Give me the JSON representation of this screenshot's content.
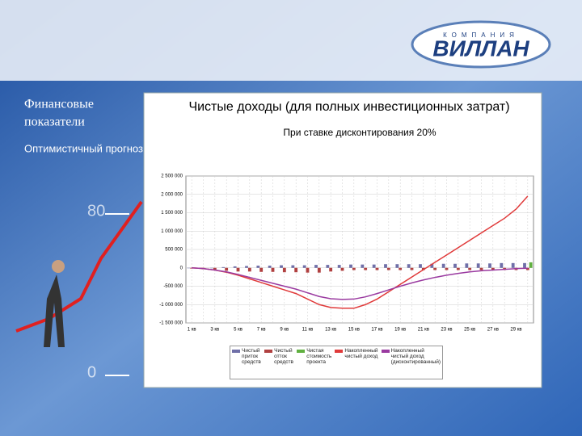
{
  "slide": {
    "heading": "Финансовые показатели",
    "scenario": "Оптимистичный прогноз",
    "logo_small": "КОМПАНИЯ",
    "logo": "ВИЛЛАН",
    "scale_top": "80",
    "scale_bottom": "0"
  },
  "chart_data": {
    "type": "combo",
    "title": "Чистые доходы (для полных инвестиционных затрат)",
    "subtitle": "При ставке дисконтирования 20%",
    "categories": [
      "1 кв",
      null,
      "3 кв",
      null,
      "5 кв",
      null,
      "7 кв",
      null,
      "9 кв",
      null,
      "11 кв",
      null,
      "13 кв",
      null,
      "15 кв",
      null,
      "17 кв",
      null,
      "19 кв",
      null,
      "21 кв",
      null,
      "23 кв",
      null,
      "25 кв",
      null,
      "27 кв",
      null,
      "29 кв",
      null
    ],
    "ylim": [
      -1500000,
      2500000
    ],
    "yticks": [
      {
        "value": -1500000,
        "label": "-1 500 000"
      },
      {
        "value": -1000000,
        "label": "-1 000 000"
      },
      {
        "value": -500000,
        "label": "-500 000"
      },
      0,
      {
        "value": 500000,
        "label": "500 000"
      },
      {
        "value": 1000000,
        "label": "1 000 000"
      },
      {
        "value": 1500000,
        "label": "1 500 000"
      },
      {
        "value": 2000000,
        "label": "2 000 000"
      },
      {
        "value": 2500000,
        "label": "2 500 000"
      }
    ],
    "grid": true,
    "series": [
      {
        "name": "Чистый приток средств",
        "type": "bar",
        "color": "#6f6fa8",
        "values": [
          0,
          0,
          0,
          20000,
          40000,
          50000,
          60000,
          60000,
          70000,
          70000,
          70000,
          80000,
          80000,
          80000,
          90000,
          90000,
          90000,
          100000,
          100000,
          100000,
          100000,
          110000,
          110000,
          110000,
          120000,
          120000,
          120000,
          130000,
          130000,
          130000
        ]
      },
      {
        "name": "Чистый отток средств",
        "type": "bar",
        "color": "#b04040",
        "values": [
          -20000,
          -40000,
          -60000,
          -80000,
          -100000,
          -100000,
          -110000,
          -110000,
          -120000,
          -120000,
          -130000,
          -130000,
          -100000,
          -80000,
          -60000,
          -60000,
          -60000,
          -60000,
          -60000,
          -60000,
          -60000,
          -60000,
          -60000,
          -60000,
          -60000,
          -60000,
          -60000,
          -60000,
          -60000,
          -60000
        ]
      },
      {
        "name": "Чистая стоимость проекта",
        "type": "bar",
        "color": "#60b040",
        "values": [
          null,
          null,
          null,
          null,
          null,
          null,
          null,
          null,
          null,
          null,
          null,
          null,
          null,
          null,
          null,
          null,
          null,
          null,
          null,
          null,
          null,
          null,
          null,
          null,
          null,
          null,
          null,
          null,
          null,
          150000
        ]
      },
      {
        "name": "Накопленный чистый доход",
        "type": "line",
        "color": "#e03a3a",
        "values": [
          0,
          -20000,
          -60000,
          -120000,
          -200000,
          -300000,
          -400000,
          -500000,
          -600000,
          -700000,
          -850000,
          -1000000,
          -1080000,
          -1100000,
          -1100000,
          -1000000,
          -850000,
          -650000,
          -450000,
          -250000,
          -50000,
          150000,
          350000,
          550000,
          750000,
          950000,
          1150000,
          1350000,
          1600000,
          1950000
        ]
      },
      {
        "name": "Накопленный чистый доход (дисконтированный)",
        "type": "line",
        "color": "#9a3aa0",
        "values": [
          0,
          -20000,
          -60000,
          -110000,
          -180000,
          -260000,
          -340000,
          -420000,
          -500000,
          -580000,
          -680000,
          -780000,
          -840000,
          -860000,
          -850000,
          -790000,
          -700000,
          -600000,
          -500000,
          -410000,
          -330000,
          -260000,
          -200000,
          -150000,
          -110000,
          -80000,
          -60000,
          -40000,
          -20000,
          -10000
        ]
      }
    ]
  }
}
